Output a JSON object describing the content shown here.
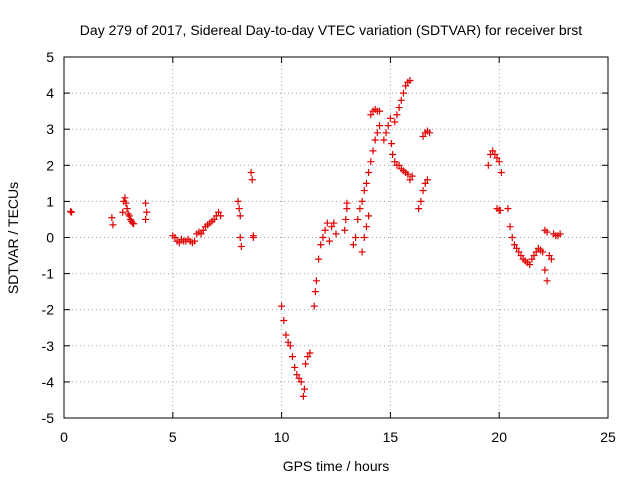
{
  "chart_data": {
    "type": "scatter",
    "title": "Day 279 of 2017, Sidereal Day-to-day VTEC variation (SDTVAR) for receiver brst",
    "xlabel": "GPS time / hours",
    "ylabel": "SDTVAR / TECUs",
    "xlim": [
      0,
      25
    ],
    "ylim": [
      -5,
      5
    ],
    "x_ticks": [
      "0",
      "5",
      "10",
      "15",
      "20",
      "25"
    ],
    "y_ticks": [
      "5",
      "4",
      "3",
      "2",
      "1",
      "0",
      "-1",
      "-2",
      "-3",
      "-4",
      "-5"
    ],
    "grid": true,
    "marker": "plus",
    "color": "#e00000",
    "series": [
      {
        "x": [
          0.3,
          0.35,
          2.2,
          2.25,
          2.7,
          2.75,
          2.8,
          2.85,
          2.9,
          2.95,
          3.0,
          3.05,
          3.1,
          3.15,
          3.2,
          3.75,
          3.8,
          3.75,
          5.0,
          5.1,
          5.2,
          5.3,
          5.4,
          5.5,
          5.6,
          5.7,
          5.8,
          5.9,
          6.0,
          6.1,
          6.2,
          6.3,
          6.4,
          6.5,
          6.6,
          6.7,
          6.8,
          6.9,
          7.0,
          7.1,
          7.2,
          8.0,
          8.05,
          8.1,
          8.1,
          8.15,
          8.6,
          8.65,
          8.7,
          8.7,
          10.0,
          10.1,
          10.2,
          10.3,
          10.4,
          10.5,
          10.6,
          10.7,
          10.8,
          10.9,
          11.0,
          11.05,
          11.1,
          11.2,
          11.3,
          11.5,
          11.55,
          11.6,
          11.7,
          11.8,
          11.9,
          12.0,
          12.1,
          12.2,
          12.3,
          12.4,
          12.5,
          12.9,
          12.95,
          13.0,
          13.0,
          13.3,
          13.4,
          13.5,
          13.6,
          13.7,
          13.8,
          13.9,
          14.0,
          14.1,
          14.2,
          14.3,
          14.4,
          14.5,
          13.7,
          13.8,
          13.9,
          14.0,
          14.1,
          14.2,
          14.3,
          14.4,
          14.5,
          14.7,
          14.8,
          14.9,
          15.0,
          15.05,
          15.1,
          15.2,
          15.3,
          15.4,
          15.5,
          15.6,
          15.7,
          15.8,
          15.9,
          15.2,
          15.3,
          15.4,
          15.5,
          15.6,
          15.7,
          15.8,
          15.9,
          16.0,
          16.3,
          16.4,
          16.5,
          16.6,
          16.7,
          16.5,
          16.6,
          16.7,
          16.8,
          19.5,
          19.6,
          19.7,
          19.8,
          19.9,
          20.0,
          20.1,
          19.9,
          20.0,
          20.05,
          20.4,
          20.5,
          20.6,
          20.7,
          20.8,
          20.9,
          21.0,
          21.1,
          21.2,
          21.3,
          21.4,
          21.5,
          21.6,
          21.7,
          21.8,
          21.9,
          22.0,
          22.1,
          22.2,
          22.3,
          22.4,
          22.5,
          22.6,
          22.7,
          22.8,
          22.1,
          22.2
        ],
        "y": [
          0.72,
          0.7,
          0.55,
          0.35,
          0.7,
          1.0,
          1.1,
          0.95,
          0.8,
          0.65,
          0.6,
          0.5,
          0.45,
          0.4,
          0.38,
          0.95,
          0.7,
          0.5,
          0.05,
          0.0,
          -0.1,
          -0.15,
          -0.05,
          -0.1,
          -0.1,
          -0.05,
          -0.1,
          -0.15,
          -0.1,
          0.1,
          0.15,
          0.1,
          0.2,
          0.3,
          0.35,
          0.4,
          0.45,
          0.5,
          0.6,
          0.7,
          0.6,
          1.0,
          0.8,
          0.6,
          0.0,
          -0.25,
          1.8,
          1.6,
          0.05,
          0.0,
          -1.9,
          -2.3,
          -2.7,
          -2.9,
          -3.0,
          -3.3,
          -3.6,
          -3.8,
          -3.9,
          -4.0,
          -4.4,
          -4.2,
          -3.5,
          -3.3,
          -3.2,
          -1.9,
          -1.5,
          -1.2,
          -0.6,
          -0.2,
          0.0,
          0.2,
          0.4,
          -0.1,
          0.3,
          0.4,
          0.1,
          0.2,
          0.5,
          0.8,
          0.95,
          -0.2,
          0.0,
          0.5,
          0.8,
          1.0,
          1.3,
          1.5,
          1.8,
          2.1,
          2.4,
          2.7,
          2.9,
          3.1,
          -0.4,
          0.0,
          0.3,
          0.6,
          3.4,
          3.5,
          3.55,
          3.5,
          3.5,
          2.7,
          2.9,
          3.1,
          3.3,
          2.6,
          2.3,
          3.2,
          3.4,
          3.6,
          3.8,
          4.0,
          4.2,
          4.3,
          4.35,
          2.1,
          2.0,
          2.0,
          1.9,
          1.85,
          1.8,
          1.75,
          1.6,
          1.7,
          0.8,
          1.0,
          1.3,
          1.5,
          1.6,
          2.8,
          2.9,
          2.95,
          2.9,
          2.0,
          2.3,
          2.4,
          2.3,
          2.2,
          2.1,
          1.8,
          0.8,
          0.75,
          0.75,
          0.8,
          0.3,
          0.0,
          -0.2,
          -0.3,
          -0.4,
          -0.5,
          -0.6,
          -0.65,
          -0.7,
          -0.75,
          -0.6,
          -0.5,
          -0.4,
          -0.3,
          -0.35,
          -0.4,
          -0.9,
          -1.2,
          -0.5,
          -0.6,
          0.1,
          0.05,
          0.05,
          0.1,
          0.2,
          0.15
        ]
      }
    ]
  }
}
